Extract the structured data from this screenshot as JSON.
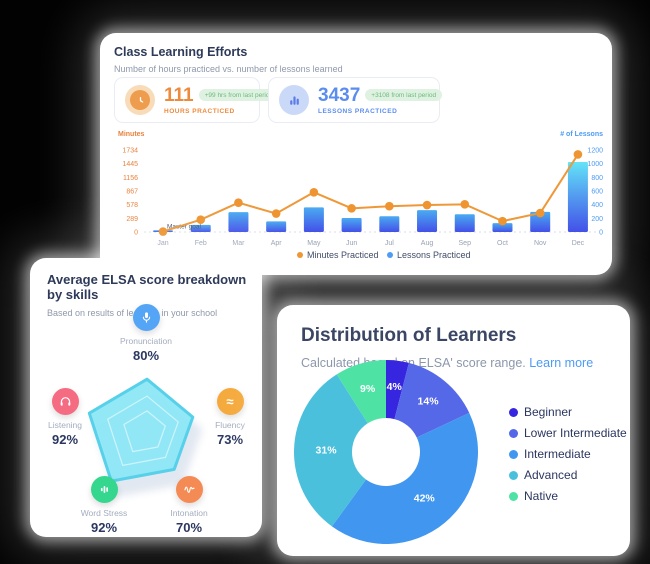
{
  "theme": {
    "badge_bg": "#dff2e2",
    "badge_fg": "#6eb97b",
    "link_color": "#4d9bf5"
  },
  "learning_efforts": {
    "title": "Class Learning Efforts",
    "subtitle": "Number of hours practiced vs. number of lessons learned",
    "stats": [
      {
        "value": "111",
        "badge": "+99 hrs from last period",
        "label": "HOURS PRACTICED",
        "accent": "#ed8a3c",
        "icon_bg": "#f8dcb9",
        "icon_fg": "#ee9c4d"
      },
      {
        "value": "3437",
        "badge": "+3108 from last period",
        "label": "LESSONS PRACTICED",
        "accent": "#5b8def",
        "icon_bg": "#cbd9f9",
        "icon_fg": "#5b7be8"
      }
    ],
    "chart_data": {
      "type": "bar+line",
      "categories": [
        "Jan",
        "Feb",
        "Mar",
        "Apr",
        "May",
        "Jun",
        "Jul",
        "Aug",
        "Sep",
        "Oct",
        "Nov",
        "Dec"
      ],
      "series": [
        {
          "name": "Minutes Practiced",
          "type": "line",
          "axis": "left",
          "color": "#ee9838",
          "dot_color": "#ee9430",
          "values": [
            10,
            260,
            620,
            390,
            840,
            500,
            545,
            570,
            585,
            230,
            400,
            1640
          ]
        },
        {
          "name": "Lessons Practiced",
          "type": "bar",
          "axis": "right",
          "legend_color": "#4d9bf5",
          "gradient_tall": [
            "#63e3f7",
            "#4350e8"
          ],
          "gradient": [
            "#4aabf1",
            "#4350e8"
          ],
          "values": [
            25,
            105,
            290,
            155,
            360,
            205,
            230,
            320,
            260,
            130,
            295,
            1025
          ]
        }
      ],
      "left_axis": {
        "label": "Minutes",
        "color": "#e8823d",
        "max": 1734,
        "ticks": [
          1734,
          1445,
          1156,
          867,
          578,
          289,
          0
        ]
      },
      "right_axis": {
        "label": "# of Lessons",
        "color": "#4d9bf5",
        "max": 1200,
        "ticks": [
          1200,
          1000,
          800,
          600,
          400,
          200,
          0
        ]
      },
      "annotation": "Master goal",
      "legend_position": "bottom"
    }
  },
  "elsa": {
    "title": "Average ELSA score breakdown by skills",
    "subtitle": "Based on results of learners in your school",
    "chart_data": {
      "type": "radar",
      "max": 100,
      "fill": "#8de7f6",
      "stroke": "#57d0ea",
      "skills": [
        {
          "name": "Pronunciation",
          "value": 80,
          "value_label": "80%",
          "icon": "microphone-icon",
          "color": "#55a5f6"
        },
        {
          "name": "Fluency",
          "value": 73,
          "value_label": "73%",
          "icon": "fluency-waves-icon",
          "color": "#f5a93b"
        },
        {
          "name": "Intonation",
          "value": 70,
          "value_label": "70%",
          "icon": "intonation-wave-icon",
          "color": "#f58b54"
        },
        {
          "name": "Word Stress",
          "value": 92,
          "value_label": "92%",
          "icon": "equalizer-icon",
          "color": "#35d68e"
        },
        {
          "name": "Listening",
          "value": 92,
          "value_label": "92%",
          "icon": "headphones-icon",
          "color": "#f56b82"
        }
      ]
    }
  },
  "distribution": {
    "title": "Distribution of Learners",
    "subtitle": "Calculated based on ELSA' score range.",
    "link_label": "Learn more",
    "chart_data": {
      "type": "donut",
      "slices": [
        {
          "label": "Beginner",
          "pct": 4,
          "color": "#3726df"
        },
        {
          "label": "Lower Intermediate",
          "pct": 14,
          "color": "#5468e8"
        },
        {
          "label": "Intermediate",
          "pct": 42,
          "color": "#4196f0"
        },
        {
          "label": "Advanced",
          "pct": 31,
          "color": "#4bc0dc"
        },
        {
          "label": "Native",
          "pct": 9,
          "color": "#4ee3a4"
        }
      ]
    }
  }
}
